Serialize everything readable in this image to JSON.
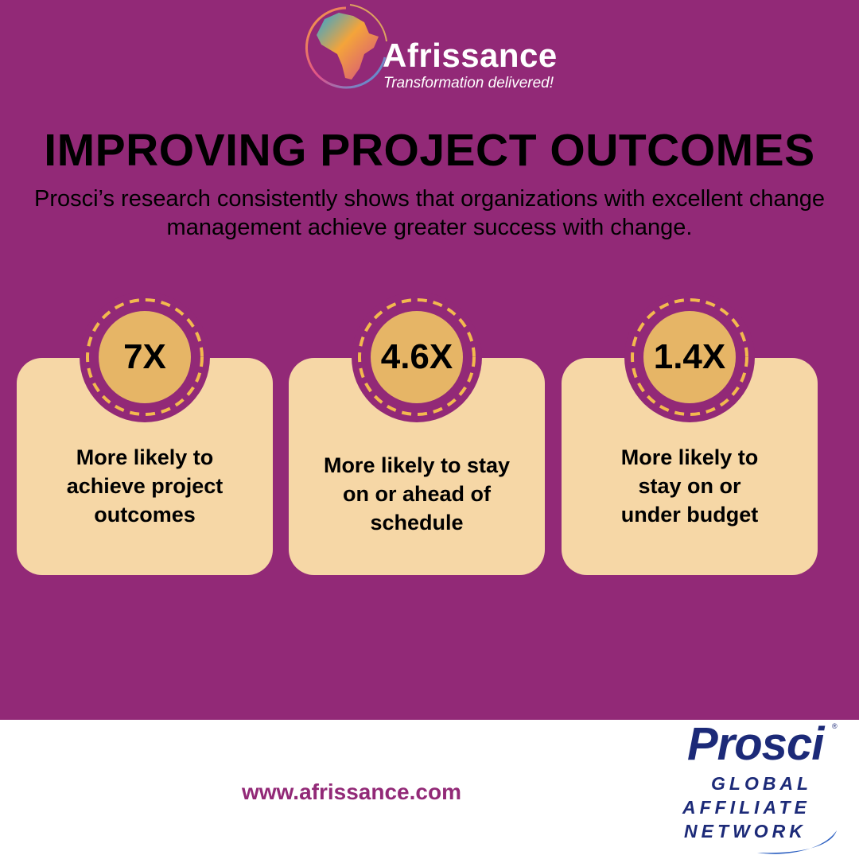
{
  "brand": {
    "name": "Afrissance",
    "tagline": "Transformation delivered!",
    "icon": "africa-globe-icon"
  },
  "heading": {
    "title": "IMPROVING PROJECT OUTCOMES",
    "subtitle": "Prosci’s research consistently shows that organizations with excellent change management achieve greater success with change."
  },
  "stats": [
    {
      "value": "7X",
      "label": "More likely to achieve project outcomes"
    },
    {
      "value": "4.6X",
      "label": "More likely to stay on or ahead of schedule"
    },
    {
      "value": "1.4X",
      "label": "More likely to stay on or under budget"
    }
  ],
  "footer": {
    "url": "www.afrissance.com",
    "partner": {
      "name": "Prosci",
      "reg_mark": "®",
      "line1": "GLOBAL",
      "line2": "AFFILIATE",
      "line3": "NETWORK"
    }
  },
  "colors": {
    "background": "#922977",
    "card": "#f6d7a6",
    "badge": "#e6b566",
    "dash": "#f3b94e",
    "partner": "#1c2a78"
  }
}
